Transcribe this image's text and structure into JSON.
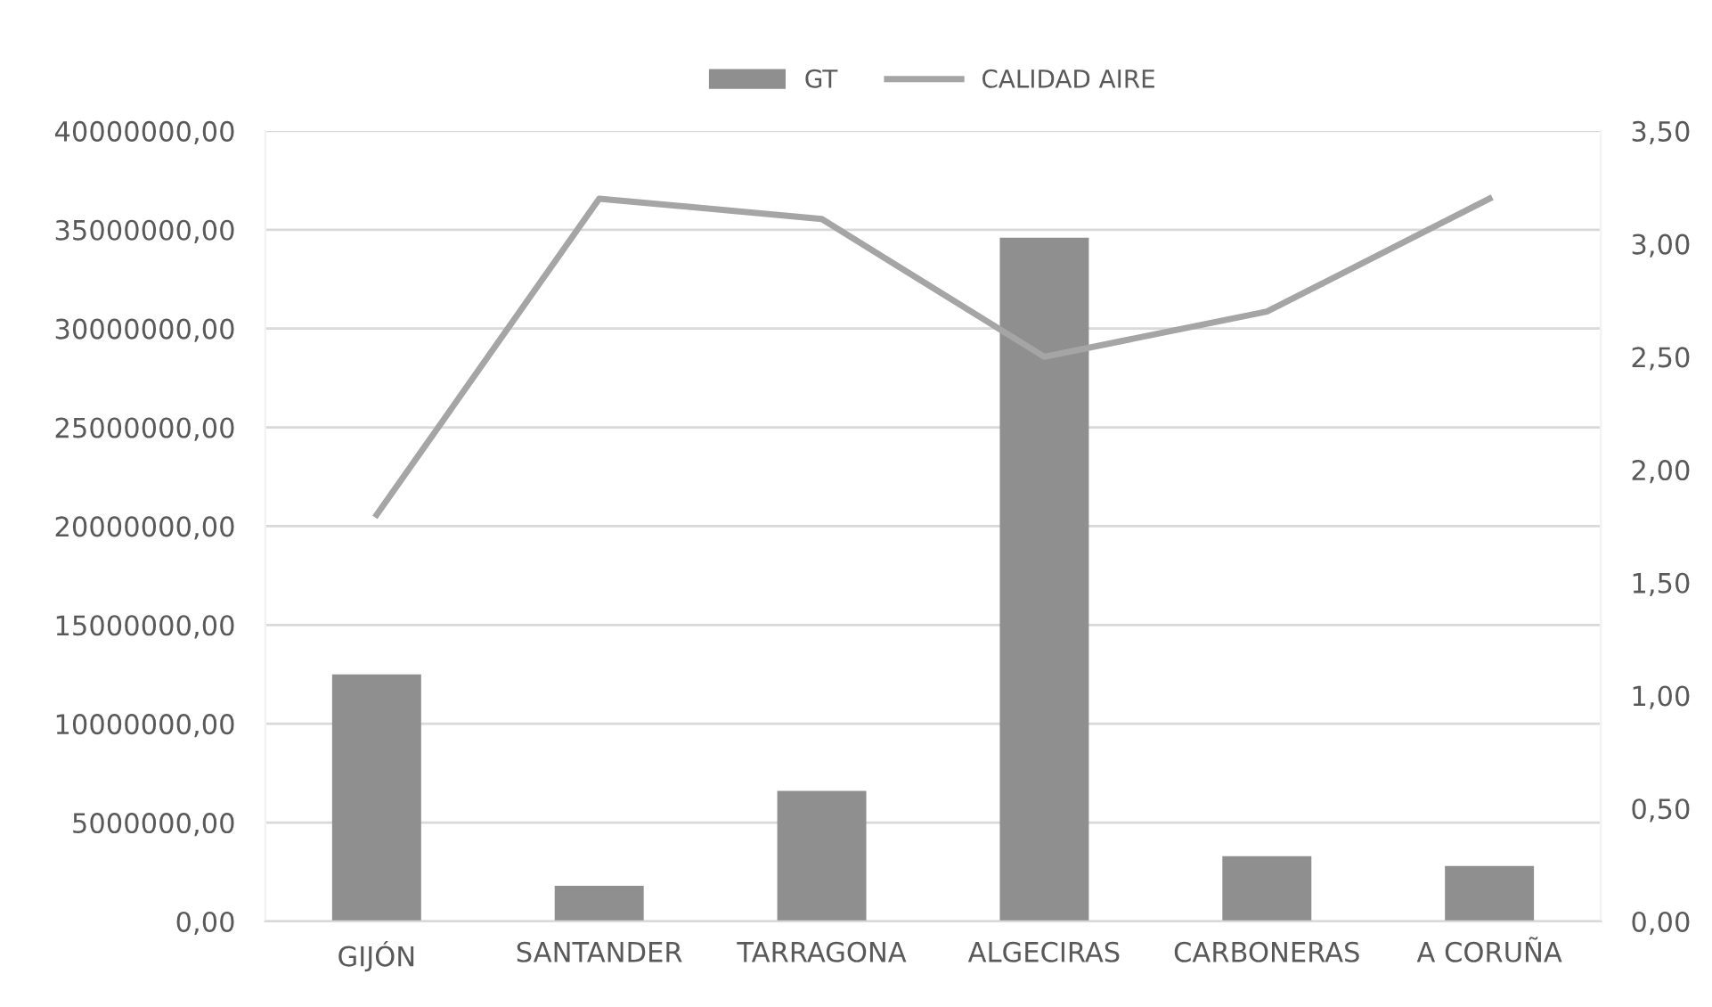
{
  "chart_data": {
    "type": "bar",
    "categories": [
      "GIJÓN",
      "SANTANDER",
      "TARRAGONA",
      "ALGECIRAS",
      "CARBONERAS",
      "A CORUÑA"
    ],
    "series": [
      {
        "name": "GT",
        "color": "#8f8f8f",
        "values": [
          12500000,
          1800000,
          6600000,
          34600000,
          3300000,
          2800000
        ]
      },
      {
        "name": "CALIDAD AIRE",
        "type": "line",
        "axis": "y2",
        "color": "#a5a5a5",
        "values": [
          1.8,
          3.2,
          3.11,
          2.5,
          2.7,
          3.2
        ]
      }
    ],
    "ylim": [
      0,
      40000000
    ],
    "yticks": [
      {
        "value": 0,
        "label": "0,00"
      },
      {
        "value": 5000000,
        "label": "5000000,00"
      },
      {
        "value": 10000000,
        "label": "10000000,00"
      },
      {
        "value": 15000000,
        "label": "15000000,00"
      },
      {
        "value": 20000000,
        "label": "20000000,00"
      },
      {
        "value": 25000000,
        "label": "25000000,00"
      },
      {
        "value": 30000000,
        "label": "30000000,00"
      },
      {
        "value": 35000000,
        "label": "35000000,00"
      },
      {
        "value": 40000000,
        "label": "40000000,00"
      }
    ],
    "y2lim": [
      0,
      3.5
    ],
    "y2ticks": [
      {
        "value": 0,
        "label": "0,00"
      },
      {
        "value": 0.5,
        "label": "0,50"
      },
      {
        "value": 1,
        "label": "1,00"
      },
      {
        "value": 1.5,
        "label": "1,50"
      },
      {
        "value": 2,
        "label": "2,00"
      },
      {
        "value": 2.5,
        "label": "2,50"
      },
      {
        "value": 3,
        "label": "3,00"
      },
      {
        "value": 3.5,
        "label": "3,50"
      }
    ],
    "grid": "y",
    "legend": "top",
    "marker": "none",
    "line_style": "solid"
  }
}
